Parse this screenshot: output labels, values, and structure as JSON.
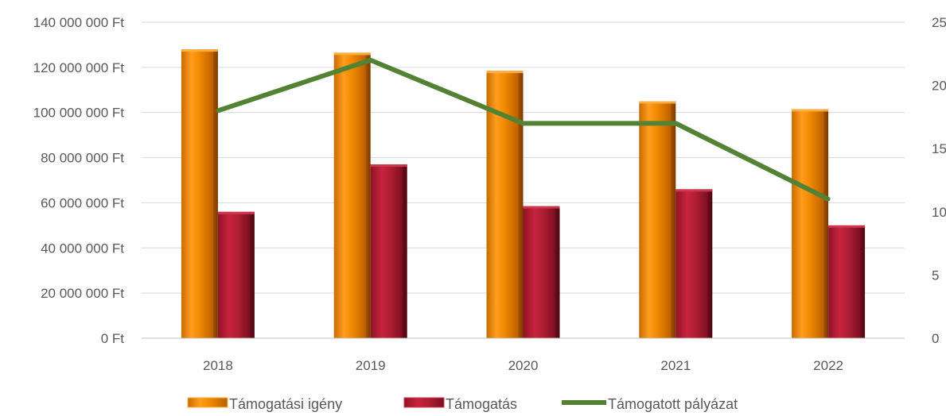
{
  "chart_data": {
    "type": "bar",
    "categories": [
      "2018",
      "2019",
      "2020",
      "2021",
      "2022"
    ],
    "series": [
      {
        "name": "Támogatási igény",
        "type": "bar",
        "axis": "left",
        "color": "#F28A00",
        "values": [
          128000000,
          126500000,
          118500000,
          105000000,
          101500000
        ]
      },
      {
        "name": "Támogatás",
        "type": "bar",
        "axis": "left",
        "color": "#B01E35",
        "values": [
          56000000,
          77000000,
          58500000,
          66000000,
          50000000
        ]
      },
      {
        "name": "Támogatott pályázat",
        "type": "line",
        "axis": "right",
        "color": "#548235",
        "values": [
          18,
          22,
          17,
          17,
          11
        ]
      }
    ],
    "y_left": {
      "min": 0,
      "max": 140000000,
      "ticks": [
        0,
        20000000,
        40000000,
        60000000,
        80000000,
        100000000,
        120000000,
        140000000
      ],
      "tick_labels": [
        "0 Ft",
        "20 000 000 Ft",
        "40 000 000 Ft",
        "60 000 000 Ft",
        "80 000 000 Ft",
        "100 000 000 Ft",
        "120 000 000 Ft",
        "140 000 000 Ft"
      ]
    },
    "y_right": {
      "min": 0,
      "max": 25,
      "ticks": [
        0,
        5,
        10,
        15,
        20,
        25
      ],
      "tick_labels": [
        "0",
        "5",
        "10",
        "15",
        "20",
        "25"
      ]
    },
    "grid": true,
    "legend_position": "bottom",
    "title": "",
    "xlabel": "",
    "ylabel": ""
  }
}
